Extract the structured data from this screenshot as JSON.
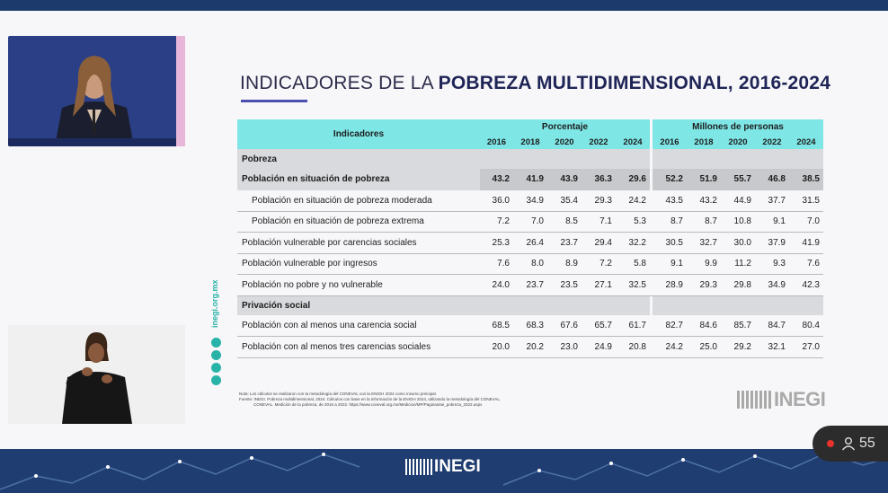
{
  "slide": {
    "title_regular": "INDICADORES DE LA ",
    "title_bold": "POBREZA MULTIDIMENSIONAL, 2016-2024",
    "accent_color": "#7fe6e6",
    "side_text": "inegi.org.mx"
  },
  "table": {
    "header_label": "Indicadores",
    "group_percent": "Porcentaje",
    "group_millions": "Millones de personas",
    "years": [
      "2016",
      "2018",
      "2020",
      "2022",
      "2024"
    ],
    "section_pobreza": "Pobreza",
    "section_privacion": "Privación social",
    "rows_pobreza": [
      {
        "label": "Población en situación de pobreza",
        "indent": false,
        "shade": true,
        "pct": [
          "43.2",
          "41.9",
          "43.9",
          "36.3",
          "29.6"
        ],
        "mil": [
          "52.2",
          "51.9",
          "55.7",
          "46.8",
          "38.5"
        ]
      },
      {
        "label": "Población en situación de pobreza moderada",
        "indent": true,
        "shade": false,
        "pct": [
          "36.0",
          "34.9",
          "35.4",
          "29.3",
          "24.2"
        ],
        "mil": [
          "43.5",
          "43.2",
          "44.9",
          "37.7",
          "31.5"
        ]
      },
      {
        "label": "Población en situación de pobreza extrema",
        "indent": true,
        "shade": false,
        "pct": [
          "7.2",
          "7.0",
          "8.5",
          "7.1",
          "5.3"
        ],
        "mil": [
          "8.7",
          "8.7",
          "10.8",
          "9.1",
          "7.0"
        ]
      },
      {
        "label": "Población vulnerable por carencias sociales",
        "indent": false,
        "shade": false,
        "pct": [
          "25.3",
          "26.4",
          "23.7",
          "29.4",
          "32.2"
        ],
        "mil": [
          "30.5",
          "32.7",
          "30.0",
          "37.9",
          "41.9"
        ]
      },
      {
        "label": "Población vulnerable por ingresos",
        "indent": false,
        "shade": false,
        "pct": [
          "7.6",
          "8.0",
          "8.9",
          "7.2",
          "5.8"
        ],
        "mil": [
          "9.1",
          "9.9",
          "11.2",
          "9.3",
          "7.6"
        ]
      },
      {
        "label": "Población no pobre y no vulnerable",
        "indent": false,
        "shade": false,
        "pct": [
          "24.0",
          "23.7",
          "23.5",
          "27.1",
          "32.5"
        ],
        "mil": [
          "28.9",
          "29.3",
          "29.8",
          "34.9",
          "42.3"
        ]
      }
    ],
    "rows_privacion": [
      {
        "label": "Población con al menos una carencia social",
        "indent": false,
        "shade": false,
        "pct": [
          "68.5",
          "68.3",
          "67.6",
          "65.7",
          "61.7"
        ],
        "mil": [
          "82.7",
          "84.6",
          "85.7",
          "84.7",
          "80.4"
        ]
      },
      {
        "label": "Población con al menos tres carencias sociales",
        "indent": false,
        "shade": false,
        "pct": [
          "20.0",
          "20.2",
          "23.0",
          "24.9",
          "20.8"
        ],
        "mil": [
          "24.2",
          "25.0",
          "29.2",
          "32.1",
          "27.0"
        ]
      }
    ]
  },
  "notes": {
    "note": "Nota:    Los cálculos se realizaron con la metodología del CONEVAL con la ENIGH 2024 como insumo principal.",
    "source": "Fuente:  INEGI. Pobreza multidimensional, 2024. Cálculos con base en la información de la ENIGH 2024, utilizando la metodología del CONEVAL.",
    "source2": "CONEVAL. Medición de la pobreza, de 2016 a 2022. https://www.coneval.org.mx/Medicion/MP/Paginas/ae_pobreza_2022.aspx"
  },
  "brand": {
    "logo_text": "INEGI",
    "footer_logo_text": "INEGI"
  },
  "live": {
    "viewer_count": "55"
  }
}
